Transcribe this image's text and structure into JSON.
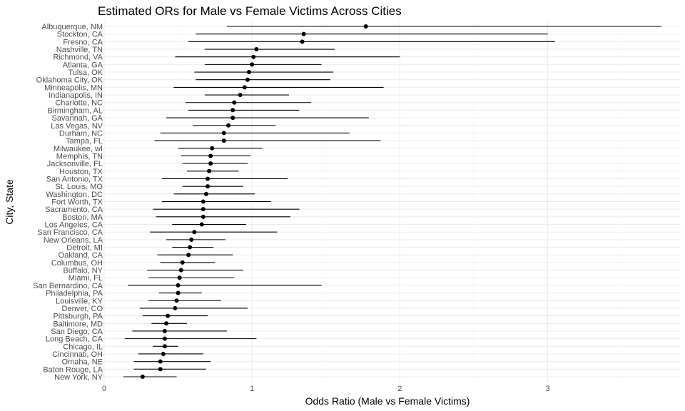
{
  "chart_data": {
    "type": "scatter",
    "title": "Estimated ORs for Male vs Female Victims Across Cities",
    "xlabel": "Odds Ratio (Male vs Female Victims)",
    "ylabel": "City, State",
    "xlim": [
      0,
      3.9
    ],
    "x_ticks": [
      0,
      1,
      2,
      3
    ],
    "x_tick_labels": [
      "0",
      "1",
      "2",
      "3"
    ],
    "grid": true,
    "legend": "none",
    "point_color": "#000000",
    "errorbar_color": "#000000",
    "categories": [
      "Albuquerque, NM",
      "Stockton, CA",
      "Fresno, CA",
      "Nashville, TN",
      "Richmond, VA",
      "Atlanta, GA",
      "Tulsa, OK",
      "Oklahoma City, OK",
      "Minneapolis, MN",
      "Indianapolis, IN",
      "Charlotte, NC",
      "Birmingham, AL",
      "Savannah, GA",
      "Las Vegas, NV",
      "Durham, NC",
      "Tampa, FL",
      "Milwaukee, wI",
      "Memphis, TN",
      "Jacksonville, FL",
      "Houston, TX",
      "San Antonio, TX",
      "St. Louis, MO",
      "Washington, DC",
      "Fort Worth, TX",
      "Sacramento, CA",
      "Boston, MA",
      "Los Angeles, CA",
      "San Francisco, CA",
      "New Orleans, LA",
      "Detroit, MI",
      "Oakland, CA",
      "Columbus, OH",
      "Buffalo, NY",
      "Miami, FL",
      "San Bernardino, CA",
      "Philadelphia, PA",
      "Louisville, KY",
      "Denver, CO",
      "Pittsburgh, PA",
      "Baltimore, MD",
      "San Diego, CA",
      "Long Beach, CA",
      "Chicago, IL",
      "Cincinnati, OH",
      "Omaha, NE",
      "Baton Rouge, LA",
      "New York, NY"
    ],
    "estimates": [
      1.77,
      1.35,
      1.34,
      1.03,
      1.01,
      1.0,
      0.98,
      0.97,
      0.95,
      0.92,
      0.88,
      0.87,
      0.87,
      0.84,
      0.81,
      0.81,
      0.73,
      0.72,
      0.72,
      0.71,
      0.7,
      0.7,
      0.69,
      0.67,
      0.67,
      0.67,
      0.66,
      0.61,
      0.59,
      0.58,
      0.57,
      0.53,
      0.52,
      0.51,
      0.5,
      0.5,
      0.49,
      0.48,
      0.43,
      0.42,
      0.41,
      0.41,
      0.41,
      0.4,
      0.38,
      0.38,
      0.26
    ],
    "ci_low": [
      0.83,
      0.62,
      0.57,
      0.68,
      0.48,
      0.68,
      0.61,
      0.62,
      0.47,
      0.68,
      0.55,
      0.57,
      0.42,
      0.6,
      0.38,
      0.34,
      0.5,
      0.52,
      0.53,
      0.56,
      0.39,
      0.53,
      0.47,
      0.39,
      0.33,
      0.35,
      0.46,
      0.31,
      0.42,
      0.46,
      0.36,
      0.38,
      0.29,
      0.3,
      0.16,
      0.37,
      0.3,
      0.24,
      0.26,
      0.32,
      0.19,
      0.14,
      0.33,
      0.23,
      0.2,
      0.2,
      0.13
    ],
    "ci_high": [
      3.77,
      3.0,
      3.05,
      1.56,
      2.0,
      1.47,
      1.55,
      1.53,
      1.89,
      1.25,
      1.4,
      1.32,
      1.79,
      1.16,
      1.66,
      1.87,
      1.07,
      0.99,
      0.97,
      0.91,
      1.24,
      0.94,
      1.02,
      1.13,
      1.32,
      1.26,
      0.96,
      1.17,
      0.82,
      0.74,
      0.87,
      0.75,
      0.94,
      0.88,
      1.47,
      0.66,
      0.79,
      0.97,
      0.7,
      0.56,
      0.83,
      1.03,
      0.5,
      0.67,
      0.72,
      0.69,
      0.49
    ]
  }
}
